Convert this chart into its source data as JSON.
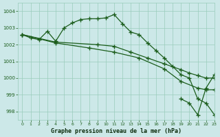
{
  "title": "Graphe pression niveau de la mer (hPa)",
  "bg_color": "#cce8e8",
  "grid_color": "#99ccbb",
  "line_color": "#1a5c1a",
  "xlim": [
    -0.5,
    23
  ],
  "ylim": [
    997.5,
    1004.5
  ],
  "yticks": [
    998,
    999,
    1000,
    1001,
    1002,
    1003,
    1004
  ],
  "xticks": [
    0,
    1,
    2,
    3,
    4,
    5,
    6,
    7,
    8,
    9,
    10,
    11,
    12,
    13,
    14,
    15,
    16,
    17,
    18,
    19,
    20,
    21,
    22,
    23
  ],
  "series": [
    {
      "x": [
        0,
        1,
        2,
        3,
        4,
        5,
        6,
        7,
        8,
        9,
        10,
        11,
        12,
        13,
        14,
        15,
        16,
        17,
        18,
        19,
        20,
        21,
        22,
        23
      ],
      "y": [
        1002.6,
        1002.4,
        1002.3,
        1002.8,
        1002.2,
        1003.0,
        1003.3,
        1003.5,
        1003.55,
        1003.55,
        1003.6,
        1003.8,
        1003.25,
        1002.75,
        1002.6,
        1002.1,
        1001.65,
        1001.2,
        1000.7,
        1000.2,
        1000.0,
        998.75,
        998.5,
        997.8
      ]
    },
    {
      "x": [
        0,
        4,
        9,
        11,
        13,
        15,
        17,
        19,
        20,
        21,
        22,
        23
      ],
      "y": [
        1002.6,
        1002.15,
        1002.0,
        1001.9,
        1001.55,
        1001.2,
        1000.85,
        1000.5,
        1000.3,
        1000.15,
        1000.0,
        1000.0
      ]
    },
    {
      "x": [
        0,
        4,
        8,
        11,
        14,
        17,
        19,
        21,
        22,
        23
      ],
      "y": [
        1002.6,
        1002.1,
        1001.8,
        1001.55,
        1001.2,
        1000.55,
        999.8,
        999.4,
        999.3,
        999.3
      ]
    },
    {
      "x": [
        19,
        20,
        21,
        22,
        23
      ],
      "y": [
        998.75,
        998.5,
        997.8,
        999.4,
        1000.2
      ]
    }
  ]
}
